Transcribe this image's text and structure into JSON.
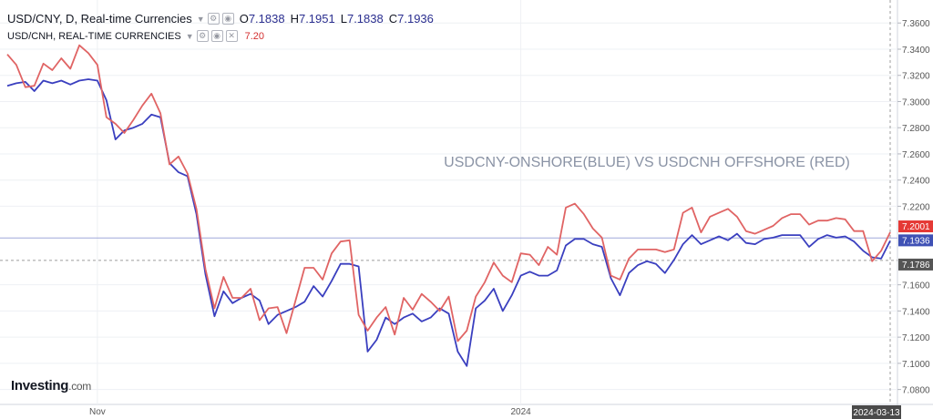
{
  "legend": {
    "main_title": "USD/CNY, D, Real-time Currencies",
    "open_label": "O",
    "open": "7.1838",
    "high_label": "H",
    "high": "7.1951",
    "low_label": "L",
    "low": "7.1838",
    "close_label": "C",
    "close": "7.1936",
    "second_title": "USD/CNH, REAL-TIME CURRENCIES",
    "second_value": "7.20"
  },
  "watermark": {
    "brand": "Investing",
    "suffix": ".com"
  },
  "colors": {
    "cny": "#3a3fbf",
    "cnh": "#e06464",
    "grid": "#eef0f4",
    "axis_text": "#555555",
    "current_red": "#e53935",
    "current_blue": "#3f51b5"
  },
  "chart_data": {
    "type": "line",
    "title": "USDCNY-ONSHORE(BLUE) VS USDCNH OFFSHORE (RED)",
    "y_ticks": [
      "7.3600",
      "7.3400",
      "7.3200",
      "7.3000",
      "7.2800",
      "7.2600",
      "7.2400",
      "7.2200",
      "7.1600",
      "7.1400",
      "7.1200",
      "7.1000",
      "7.0800"
    ],
    "ylim": [
      7.07,
      7.372
    ],
    "x_labels": [
      {
        "index": 10,
        "label": "Nov"
      },
      {
        "index": 57,
        "label": "2024"
      }
    ],
    "last_date": "2024-03-13",
    "price_labels": [
      {
        "label": "7.2001",
        "value": 7.2001,
        "color": "#e53935"
      },
      {
        "label": "7.1936",
        "value": 7.1936,
        "color": "#3f51b5"
      },
      {
        "label": "7.1786",
        "value": 7.1786,
        "color": "#555555"
      }
    ],
    "hline": 7.1958,
    "dashed_level": 7.1786,
    "series": [
      {
        "name": "USDCNY",
        "color": "#3a3fbf",
        "values": [
          7.312,
          7.314,
          7.315,
          7.308,
          7.316,
          7.314,
          7.316,
          7.313,
          7.316,
          7.317,
          7.316,
          7.301,
          7.271,
          7.278,
          7.28,
          7.283,
          7.29,
          7.288,
          7.253,
          7.246,
          7.243,
          7.214,
          7.168,
          7.136,
          7.155,
          7.146,
          7.15,
          7.153,
          7.148,
          7.13,
          7.137,
          7.14,
          7.143,
          7.147,
          7.159,
          7.151,
          7.163,
          7.176,
          7.176,
          7.174,
          7.109,
          7.118,
          7.135,
          7.13,
          7.135,
          7.138,
          7.132,
          7.135,
          7.142,
          7.138,
          7.109,
          7.098,
          7.142,
          7.148,
          7.157,
          7.14,
          7.152,
          7.167,
          7.17,
          7.167,
          7.167,
          7.171,
          7.19,
          7.195,
          7.195,
          7.191,
          7.189,
          7.165,
          7.152,
          7.169,
          7.175,
          7.178,
          7.176,
          7.169,
          7.179,
          7.191,
          7.198,
          7.191,
          7.194,
          7.197,
          7.194,
          7.199,
          7.192,
          7.191,
          7.195,
          7.196,
          7.198,
          7.198,
          7.198,
          7.189,
          7.195,
          7.198,
          7.196,
          7.197,
          7.193,
          7.186,
          7.181,
          7.18,
          7.1936
        ]
      },
      {
        "name": "USDCNH",
        "color": "#e06464",
        "values": [
          7.336,
          7.328,
          7.311,
          7.312,
          7.329,
          7.324,
          7.333,
          7.325,
          7.343,
          7.337,
          7.328,
          7.288,
          7.283,
          7.276,
          7.286,
          7.297,
          7.306,
          7.291,
          7.252,
          7.258,
          7.245,
          7.218,
          7.172,
          7.142,
          7.166,
          7.15,
          7.15,
          7.157,
          7.133,
          7.142,
          7.143,
          7.123,
          7.148,
          7.173,
          7.173,
          7.164,
          7.184,
          7.193,
          7.194,
          7.137,
          7.125,
          7.135,
          7.143,
          7.122,
          7.15,
          7.141,
          7.153,
          7.147,
          7.14,
          7.151,
          7.117,
          7.125,
          7.151,
          7.162,
          7.177,
          7.167,
          7.162,
          7.184,
          7.183,
          7.175,
          7.189,
          7.183,
          7.219,
          7.222,
          7.214,
          7.203,
          7.196,
          7.167,
          7.164,
          7.18,
          7.187,
          7.187,
          7.187,
          7.185,
          7.187,
          7.215,
          7.219,
          7.2,
          7.212,
          7.215,
          7.218,
          7.212,
          7.201,
          7.199,
          7.202,
          7.205,
          7.211,
          7.214,
          7.214,
          7.206,
          7.209,
          7.209,
          7.211,
          7.21,
          7.201,
          7.201,
          7.178,
          7.186,
          7.2001
        ]
      }
    ]
  }
}
